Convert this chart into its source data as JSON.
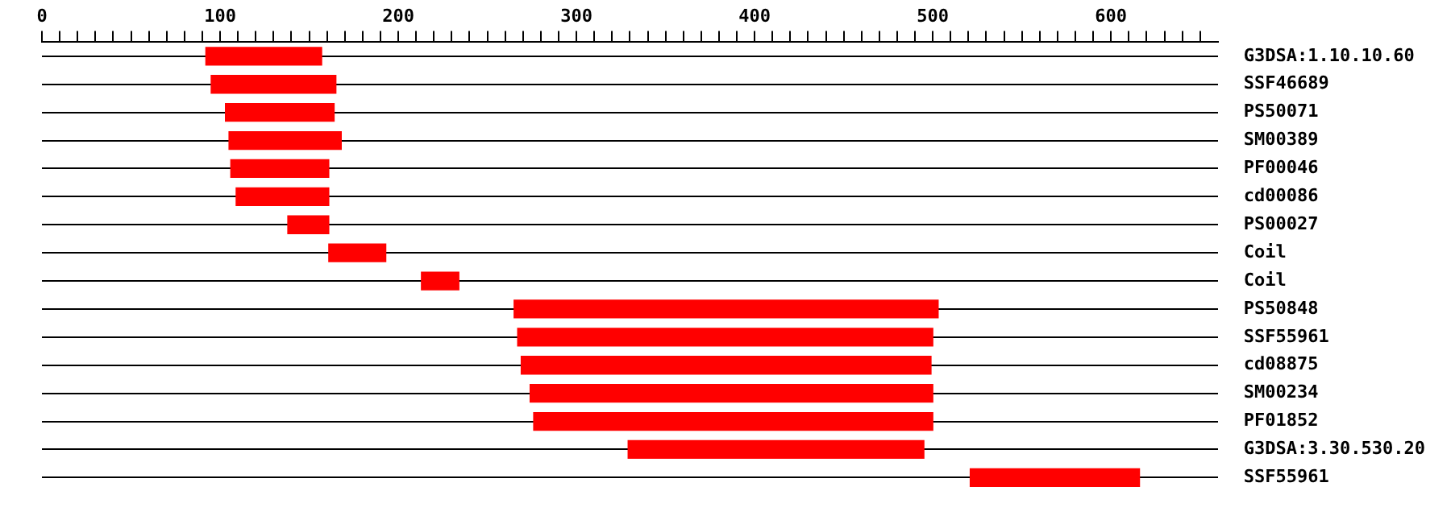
{
  "chart_data": {
    "type": "bar",
    "orientation": "horizontal",
    "grid": "y",
    "categories": [
      "G3DSA:1.10.10.60",
      "SSF46689",
      "PS50071",
      "SM00389",
      "PF00046",
      "cd00086",
      "PS00027",
      "Coil",
      "Coil",
      "PS50848",
      "SSF55961",
      "cd08875",
      "SM00234",
      "PF01852",
      "G3DSA:3.30.530.20",
      "SSF55961"
    ],
    "base": [
      92,
      95,
      103,
      105,
      106,
      109,
      138,
      161,
      213,
      265,
      267,
      269,
      274,
      276,
      329,
      521
    ],
    "values": [
      65,
      70,
      61,
      63,
      55,
      52,
      23,
      32,
      21,
      238,
      233,
      230,
      226,
      224,
      166,
      95
    ],
    "color": "#ff0000",
    "xlim": [
      0,
      660
    ],
    "xticks": [
      0,
      {
        "value": 10,
        "label": null
      },
      {
        "value": 20,
        "label": null
      },
      {
        "value": 30,
        "label": null
      },
      {
        "value": 40,
        "label": null
      },
      {
        "value": 50,
        "label": null
      },
      {
        "value": 60,
        "label": null
      },
      {
        "value": 70,
        "label": null
      },
      {
        "value": 80,
        "label": null
      },
      {
        "value": 90,
        "label": null
      },
      100,
      {
        "value": 110,
        "label": null
      },
      {
        "value": 120,
        "label": null
      },
      {
        "value": 130,
        "label": null
      },
      {
        "value": 140,
        "label": null
      },
      {
        "value": 150,
        "label": null
      },
      {
        "value": 160,
        "label": null
      },
      {
        "value": 170,
        "label": null
      },
      {
        "value": 180,
        "label": null
      },
      {
        "value": 190,
        "label": null
      },
      200,
      {
        "value": 210,
        "label": null
      },
      {
        "value": 220,
        "label": null
      },
      {
        "value": 230,
        "label": null
      },
      {
        "value": 240,
        "label": null
      },
      {
        "value": 250,
        "label": null
      },
      {
        "value": 260,
        "label": null
      },
      {
        "value": 270,
        "label": null
      },
      {
        "value": 280,
        "label": null
      },
      {
        "value": 290,
        "label": null
      },
      300,
      {
        "value": 310,
        "label": null
      },
      {
        "value": 320,
        "label": null
      },
      {
        "value": 330,
        "label": null
      },
      {
        "value": 340,
        "label": null
      },
      {
        "value": 350,
        "label": null
      },
      {
        "value": 360,
        "label": null
      },
      {
        "value": 370,
        "label": null
      },
      {
        "value": 380,
        "label": null
      },
      {
        "value": 390,
        "label": null
      },
      400,
      {
        "value": 410,
        "label": null
      },
      {
        "value": 420,
        "label": null
      },
      {
        "value": 430,
        "label": null
      },
      {
        "value": 440,
        "label": null
      },
      {
        "value": 450,
        "label": null
      },
      {
        "value": 460,
        "label": null
      },
      {
        "value": 470,
        "label": null
      },
      {
        "value": 480,
        "label": null
      },
      {
        "value": 490,
        "label": null
      },
      500,
      {
        "value": 510,
        "label": null
      },
      {
        "value": 520,
        "label": null
      },
      {
        "value": 530,
        "label": null
      },
      {
        "value": 540,
        "label": null
      },
      {
        "value": 550,
        "label": null
      },
      {
        "value": 560,
        "label": null
      },
      {
        "value": 570,
        "label": null
      },
      {
        "value": 580,
        "label": null
      },
      {
        "value": 590,
        "label": null
      },
      600,
      {
        "value": 610,
        "label": null
      },
      {
        "value": 620,
        "label": null
      },
      {
        "value": 630,
        "label": null
      },
      {
        "value": 640,
        "label": null
      },
      {
        "value": 650,
        "label": null
      }
    ]
  }
}
